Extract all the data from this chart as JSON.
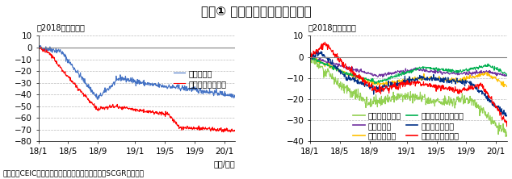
{
  "title": "図表① 各国の為替レートの変化",
  "subtitle_left": "（2018年初比％）",
  "subtitle_right": "（2018年初比％）",
  "xlabel": "（年/月）",
  "source": "（出所：CEICより住友商事グローバルリサーチ（SCGR）作成）",
  "left_ylim": [
    -80,
    10
  ],
  "right_ylim": [
    -40,
    10
  ],
  "left_yticks": [
    10,
    0,
    -10,
    -20,
    -30,
    -40,
    -50,
    -60,
    -70,
    -80
  ],
  "right_yticks": [
    10,
    0,
    -10,
    -20,
    -30,
    -40
  ],
  "xtick_labels": [
    "18/1",
    "18/5",
    "18/9",
    "19/1",
    "19/5",
    "19/9",
    "20/1"
  ],
  "xtick_pos": [
    0,
    80,
    160,
    260,
    340,
    420,
    500
  ],
  "n_points": 530,
  "left_legend": [
    {
      "label": "トルコリラ",
      "color": "#4472C4"
    },
    {
      "label": "アルゼンチンペソ",
      "color": "#FF0000"
    }
  ],
  "right_legend": [
    {
      "label": "ブラジルレアル",
      "color": "#92D050"
    },
    {
      "label": "中国人民元",
      "color": "#7030A0"
    },
    {
      "label": "インドルピー",
      "color": "#FFC000"
    },
    {
      "label": "インドネシアルピア",
      "color": "#00B050"
    },
    {
      "label": "ロシアルーブル",
      "color": "#003087"
    },
    {
      "label": "南アフリカランド",
      "color": "#FF0000"
    }
  ],
  "background_color": "#FFFFFF",
  "grid_color": "#AAAAAA",
  "zero_line_color": "#808080",
  "title_fontsize": 11,
  "axis_fontsize": 7.5,
  "legend_fontsize": 7,
  "source_fontsize": 6.5
}
